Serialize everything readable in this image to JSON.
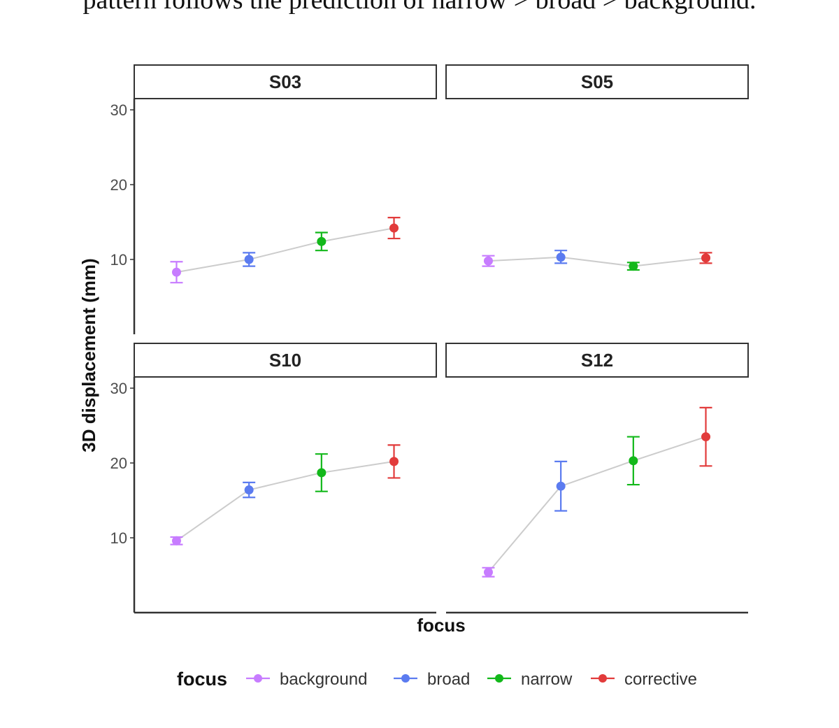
{
  "page": {
    "top_text": "pattern follows the prediction of narrow > broad > background."
  },
  "colors": {
    "background": "#C77CFF",
    "broad": "#5B7BF0",
    "narrow": "#12B81A",
    "corrective": "#E23B3B",
    "connector": "#cccccc",
    "axis": "#333333"
  },
  "chart_data": {
    "type": "scatter",
    "subtype": "faceted point-range with error bars",
    "xlabel": "focus",
    "ylabel": "3D displacement (mm)",
    "categories": [
      "background",
      "broad",
      "narrow",
      "corrective"
    ],
    "yticks": [
      10,
      20,
      30
    ],
    "ylim": [
      0,
      31.5
    ],
    "x_tick_labels_shown": false,
    "grid": false,
    "legend": {
      "title": "focus",
      "position": "bottom",
      "entries": [
        "background",
        "broad",
        "narrow",
        "corrective"
      ]
    },
    "facets": [
      {
        "label": "S03",
        "values": [
          8.3,
          10.0,
          12.4,
          14.2
        ],
        "lower": [
          6.9,
          9.1,
          11.2,
          12.8
        ],
        "upper": [
          9.7,
          10.9,
          13.6,
          15.6
        ]
      },
      {
        "label": "S05",
        "values": [
          9.8,
          10.3,
          9.1,
          10.2
        ],
        "lower": [
          9.1,
          9.5,
          8.6,
          9.5
        ],
        "upper": [
          10.5,
          11.2,
          9.6,
          10.9
        ]
      },
      {
        "label": "S10",
        "values": [
          9.6,
          16.4,
          18.7,
          20.2
        ],
        "lower": [
          9.1,
          15.4,
          16.2,
          18.0
        ],
        "upper": [
          10.1,
          17.4,
          21.2,
          22.4
        ]
      },
      {
        "label": "S12",
        "values": [
          5.4,
          16.9,
          20.3,
          23.5
        ],
        "lower": [
          4.8,
          13.6,
          17.1,
          19.6
        ],
        "upper": [
          6.0,
          20.2,
          23.5,
          27.4
        ]
      }
    ]
  }
}
